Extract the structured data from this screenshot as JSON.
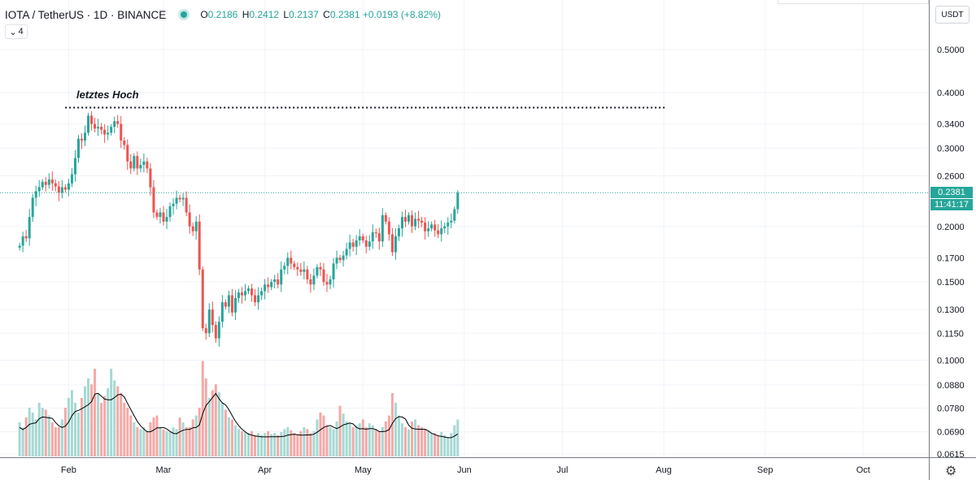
{
  "header": {
    "symbol": "IOTA / TetherUS · 1D · BINANCE",
    "o_label": "O",
    "o_value": "0.2186",
    "h_label": "H",
    "h_value": "0.2412",
    "l_label": "L",
    "l_value": "0.2137",
    "c_label": "C",
    "c_value": "0.2381",
    "change": "+0.0193 (+8.82%)",
    "indicator_count": "4",
    "live_dot_color": "#26a69a"
  },
  "currency": "USDT",
  "annotation": {
    "text": "letztes Hoch",
    "level": 0.37,
    "from_day": 8,
    "to_day": 192
  },
  "last_price": {
    "label": "0.2381",
    "countdown": "11:41:17",
    "color": "#26a69a"
  },
  "colors": {
    "up": "#26a69a",
    "down": "#ef5350",
    "up_vol": "#a6d9d3",
    "down_vol": "#f4a9a7",
    "ma": "#000000",
    "grid": "#f0f3fa"
  },
  "chart_data": {
    "type": "candlestick",
    "symbol": "IOTA/USDT",
    "interval": "1D",
    "y_scale": "log",
    "ylim": [
      0.0615,
      0.58
    ],
    "y_ticks": [
      "0.5000",
      "0.4000",
      "0.3400",
      "0.3000",
      "0.2600",
      "0.2381",
      "0.2000",
      "0.1700",
      "0.1500",
      "0.1300",
      "0.1150",
      "0.1000",
      "0.0880",
      "0.0780",
      "0.0690",
      "0.0615"
    ],
    "x_ticks": [
      {
        "label": "Feb",
        "day": 21
      },
      {
        "label": "Mar",
        "day": 50
      },
      {
        "label": "Apr",
        "day": 81
      },
      {
        "label": "May",
        "day": 111
      },
      {
        "label": "Jun",
        "day": 142
      },
      {
        "label": "Jul",
        "day": 172
      },
      {
        "label": "Aug",
        "day": 203
      },
      {
        "label": "Sep",
        "day": 234
      },
      {
        "label": "Oct",
        "day": 264
      }
    ],
    "x_range_days": [
      0,
      286
    ],
    "last_candle": {
      "open": 0.2186,
      "high": 0.2412,
      "low": 0.2137,
      "close": 0.2381
    },
    "closes": [
      0.181,
      0.19,
      0.188,
      0.21,
      0.232,
      0.24,
      0.245,
      0.252,
      0.248,
      0.255,
      0.25,
      0.246,
      0.238,
      0.245,
      0.242,
      0.25,
      0.262,
      0.285,
      0.315,
      0.312,
      0.325,
      0.355,
      0.34,
      0.332,
      0.335,
      0.33,
      0.322,
      0.325,
      0.335,
      0.345,
      0.34,
      0.312,
      0.305,
      0.28,
      0.27,
      0.288,
      0.27,
      0.275,
      0.28,
      0.27,
      0.245,
      0.215,
      0.21,
      0.215,
      0.205,
      0.21,
      0.222,
      0.225,
      0.232,
      0.23,
      0.232,
      0.215,
      0.2,
      0.195,
      0.205,
      0.16,
      0.118,
      0.115,
      0.13,
      0.12,
      0.112,
      0.122,
      0.135,
      0.132,
      0.14,
      0.128,
      0.138,
      0.142,
      0.14,
      0.143,
      0.145,
      0.14,
      0.135,
      0.14,
      0.143,
      0.148,
      0.146,
      0.15,
      0.152,
      0.148,
      0.16,
      0.163,
      0.17,
      0.165,
      0.162,
      0.16,
      0.158,
      0.16,
      0.152,
      0.148,
      0.155,
      0.162,
      0.16,
      0.15,
      0.148,
      0.152,
      0.165,
      0.17,
      0.168,
      0.172,
      0.178,
      0.184,
      0.18,
      0.186,
      0.19,
      0.186,
      0.18,
      0.185,
      0.194,
      0.193,
      0.185,
      0.212,
      0.205,
      0.192,
      0.175,
      0.19,
      0.198,
      0.21,
      0.205,
      0.212,
      0.2,
      0.208,
      0.206,
      0.204,
      0.195,
      0.198,
      0.202,
      0.196,
      0.192,
      0.198,
      0.2,
      0.204,
      0.206,
      0.2186,
      0.2381
    ],
    "volumes": [
      0.35,
      0.3,
      0.4,
      0.5,
      0.45,
      0.38,
      0.55,
      0.5,
      0.48,
      0.42,
      0.35,
      0.3,
      0.3,
      0.38,
      0.5,
      0.6,
      0.68,
      0.55,
      0.45,
      0.6,
      0.72,
      0.8,
      0.74,
      0.9,
      0.65,
      0.55,
      0.62,
      0.7,
      0.9,
      0.78,
      0.72,
      0.65,
      0.55,
      0.5,
      0.42,
      0.35,
      0.3,
      0.28,
      0.3,
      0.26,
      0.35,
      0.4,
      0.42,
      0.3,
      0.28,
      0.26,
      0.25,
      0.3,
      0.28,
      0.4,
      0.35,
      0.3,
      0.3,
      0.38,
      0.42,
      0.5,
      0.98,
      0.8,
      0.6,
      0.68,
      0.74,
      0.66,
      0.55,
      0.48,
      0.4,
      0.38,
      0.32,
      0.28,
      0.26,
      0.25,
      0.24,
      0.26,
      0.22,
      0.24,
      0.22,
      0.24,
      0.26,
      0.23,
      0.24,
      0.22,
      0.25,
      0.28,
      0.3,
      0.27,
      0.24,
      0.22,
      0.26,
      0.3,
      0.28,
      0.24,
      0.26,
      0.38,
      0.45,
      0.42,
      0.32,
      0.3,
      0.28,
      0.36,
      0.52,
      0.44,
      0.36,
      0.34,
      0.3,
      0.32,
      0.34,
      0.38,
      0.3,
      0.34,
      0.32,
      0.28,
      0.26,
      0.3,
      0.36,
      0.42,
      0.65,
      0.55,
      0.42,
      0.34,
      0.3,
      0.28,
      0.36,
      0.38,
      0.32,
      0.3,
      0.28,
      0.26,
      0.24,
      0.24,
      0.22,
      0.25,
      0.22,
      0.2,
      0.24,
      0.32,
      0.38
    ]
  }
}
